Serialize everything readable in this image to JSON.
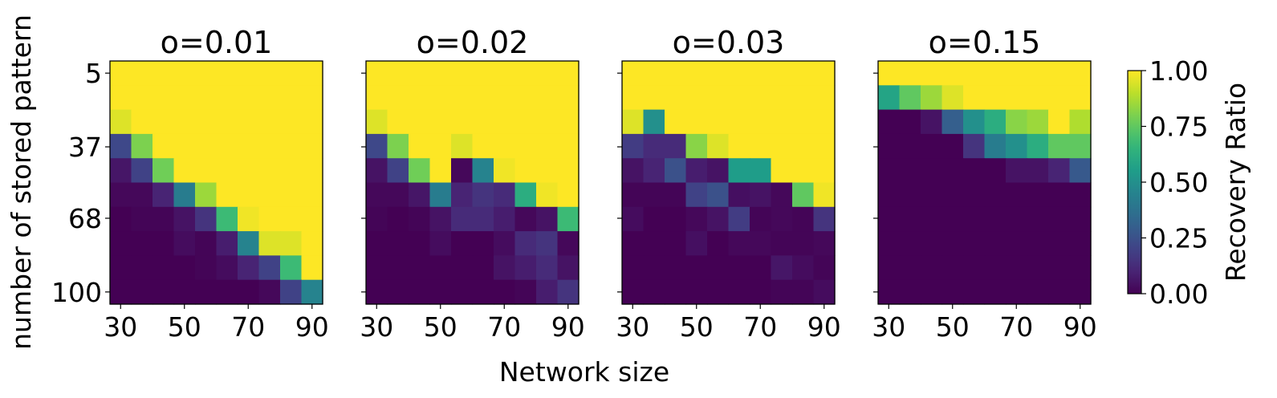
{
  "chart_data": {
    "type": "heatmap",
    "xlabel": "Network size",
    "ylabel": "number of stored pattern",
    "colorbar": {
      "label": "Recovery Ratio",
      "range": [
        0,
        1
      ],
      "ticks": [
        "0.00",
        "0.25",
        "0.50",
        "0.75",
        "1.00"
      ],
      "colormap": "viridis"
    },
    "x_ticks": [
      "30",
      "50",
      "70",
      "90"
    ],
    "x_tick_values": [
      30,
      50,
      70,
      90
    ],
    "y_ticks": [
      "5",
      "37",
      "68",
      "100"
    ],
    "y_tick_values": [
      5,
      37,
      68,
      100
    ],
    "x_values": [
      30,
      37,
      43,
      50,
      57,
      63,
      70,
      77,
      83,
      90
    ],
    "y_values": [
      5,
      16,
      26,
      37,
      47,
      58,
      68,
      79,
      89,
      100
    ],
    "panels": [
      {
        "title": "o=0.01",
        "values": [
          [
            1,
            1,
            1,
            1,
            1,
            1,
            1,
            1,
            1,
            1
          ],
          [
            1,
            1,
            1,
            1,
            1,
            1,
            1,
            1,
            1,
            1
          ],
          [
            0.95,
            1,
            1,
            1,
            1,
            1,
            1,
            1,
            1,
            1
          ],
          [
            0.22,
            0.8,
            1,
            1,
            1,
            1,
            1,
            1,
            1,
            1
          ],
          [
            0.06,
            0.2,
            0.78,
            1,
            1,
            1,
            1,
            1,
            1,
            1
          ],
          [
            0.02,
            0.02,
            0.1,
            0.42,
            0.85,
            1,
            1,
            1,
            1,
            1
          ],
          [
            0,
            0.01,
            0.01,
            0.05,
            0.15,
            0.68,
            0.98,
            1,
            1,
            1
          ],
          [
            0,
            0,
            0,
            0.03,
            0.01,
            0.08,
            0.45,
            0.95,
            0.95,
            1
          ],
          [
            0,
            0,
            0,
            0,
            0.01,
            0.03,
            0.1,
            0.2,
            0.68,
            1
          ],
          [
            0,
            0,
            0,
            0,
            0,
            0,
            0,
            0.02,
            0.2,
            0.45
          ]
        ]
      },
      {
        "title": "o=0.02",
        "values": [
          [
            1,
            1,
            1,
            1,
            1,
            1,
            1,
            1,
            1,
            1
          ],
          [
            1,
            1,
            1,
            1,
            1,
            1,
            1,
            1,
            1,
            1
          ],
          [
            0.95,
            1,
            1,
            1,
            1,
            1,
            1,
            1,
            1,
            1
          ],
          [
            0.22,
            0.8,
            1,
            1,
            0.95,
            1,
            1,
            1,
            1,
            1
          ],
          [
            0.05,
            0.2,
            0.78,
            1,
            0.02,
            0.45,
            0.98,
            1,
            1,
            1
          ],
          [
            0.02,
            0.02,
            0.06,
            0.42,
            0.1,
            0.15,
            0.12,
            0.62,
            0.98,
            1
          ],
          [
            0.01,
            0,
            0.01,
            0.05,
            0.12,
            0.12,
            0.08,
            0.02,
            0.05,
            0.68
          ],
          [
            0,
            0,
            0,
            0.03,
            0,
            0,
            0.03,
            0.12,
            0.15,
            0.02
          ],
          [
            0,
            0,
            0,
            0,
            0,
            0,
            0.05,
            0.08,
            0.12,
            0.05
          ],
          [
            0,
            0,
            0,
            0,
            0,
            0,
            0,
            0.01,
            0.08,
            0.15
          ]
        ]
      },
      {
        "title": "o=0.03",
        "values": [
          [
            1,
            1,
            1,
            1,
            1,
            1,
            1,
            1,
            1,
            1
          ],
          [
            1,
            1,
            1,
            1,
            1,
            1,
            1,
            1,
            1,
            1
          ],
          [
            0.95,
            0.5,
            1,
            1,
            1,
            1,
            1,
            1,
            1,
            1
          ],
          [
            0.18,
            0.12,
            0.12,
            0.82,
            0.95,
            1,
            1,
            1,
            1,
            1
          ],
          [
            0.05,
            0.1,
            0.25,
            0.08,
            0.05,
            0.55,
            0.55,
            1,
            1,
            1
          ],
          [
            0.01,
            0.01,
            0.01,
            0.2,
            0.25,
            0.04,
            0.05,
            0.02,
            0.75,
            0.98
          ],
          [
            0.03,
            0,
            0,
            0.02,
            0.05,
            0.18,
            0.01,
            0.02,
            0.01,
            0.15
          ],
          [
            0,
            0,
            0,
            0.04,
            0,
            0.02,
            0.02,
            0.01,
            0.01,
            0.02
          ],
          [
            0,
            0,
            0,
            0,
            0,
            0,
            0,
            0.06,
            0.03,
            0.01
          ],
          [
            0,
            0,
            0,
            0,
            0,
            0,
            0,
            0.01,
            0.01,
            0.03
          ]
        ]
      },
      {
        "title": "o=0.15",
        "values": [
          [
            1,
            1,
            1,
            1,
            1,
            1,
            1,
            1,
            1,
            1
          ],
          [
            0.58,
            0.75,
            0.85,
            0.95,
            1,
            1,
            1,
            1,
            1,
            1
          ],
          [
            0,
            0,
            0.05,
            0.3,
            0.5,
            0.62,
            0.82,
            0.85,
            1,
            0.88
          ],
          [
            0,
            0,
            0,
            0,
            0.15,
            0.42,
            0.5,
            0.62,
            0.75,
            0.75
          ],
          [
            0,
            0,
            0,
            0,
            0,
            0,
            0.05,
            0.05,
            0.1,
            0.28
          ],
          [
            0,
            0,
            0,
            0,
            0,
            0,
            0,
            0,
            0,
            0
          ],
          [
            0,
            0,
            0,
            0,
            0,
            0,
            0,
            0,
            0,
            0
          ],
          [
            0,
            0,
            0,
            0,
            0,
            0,
            0,
            0,
            0,
            0
          ],
          [
            0,
            0,
            0,
            0,
            0,
            0,
            0,
            0,
            0,
            0
          ],
          [
            0,
            0,
            0,
            0,
            0,
            0,
            0,
            0,
            0,
            0
          ]
        ]
      }
    ]
  }
}
